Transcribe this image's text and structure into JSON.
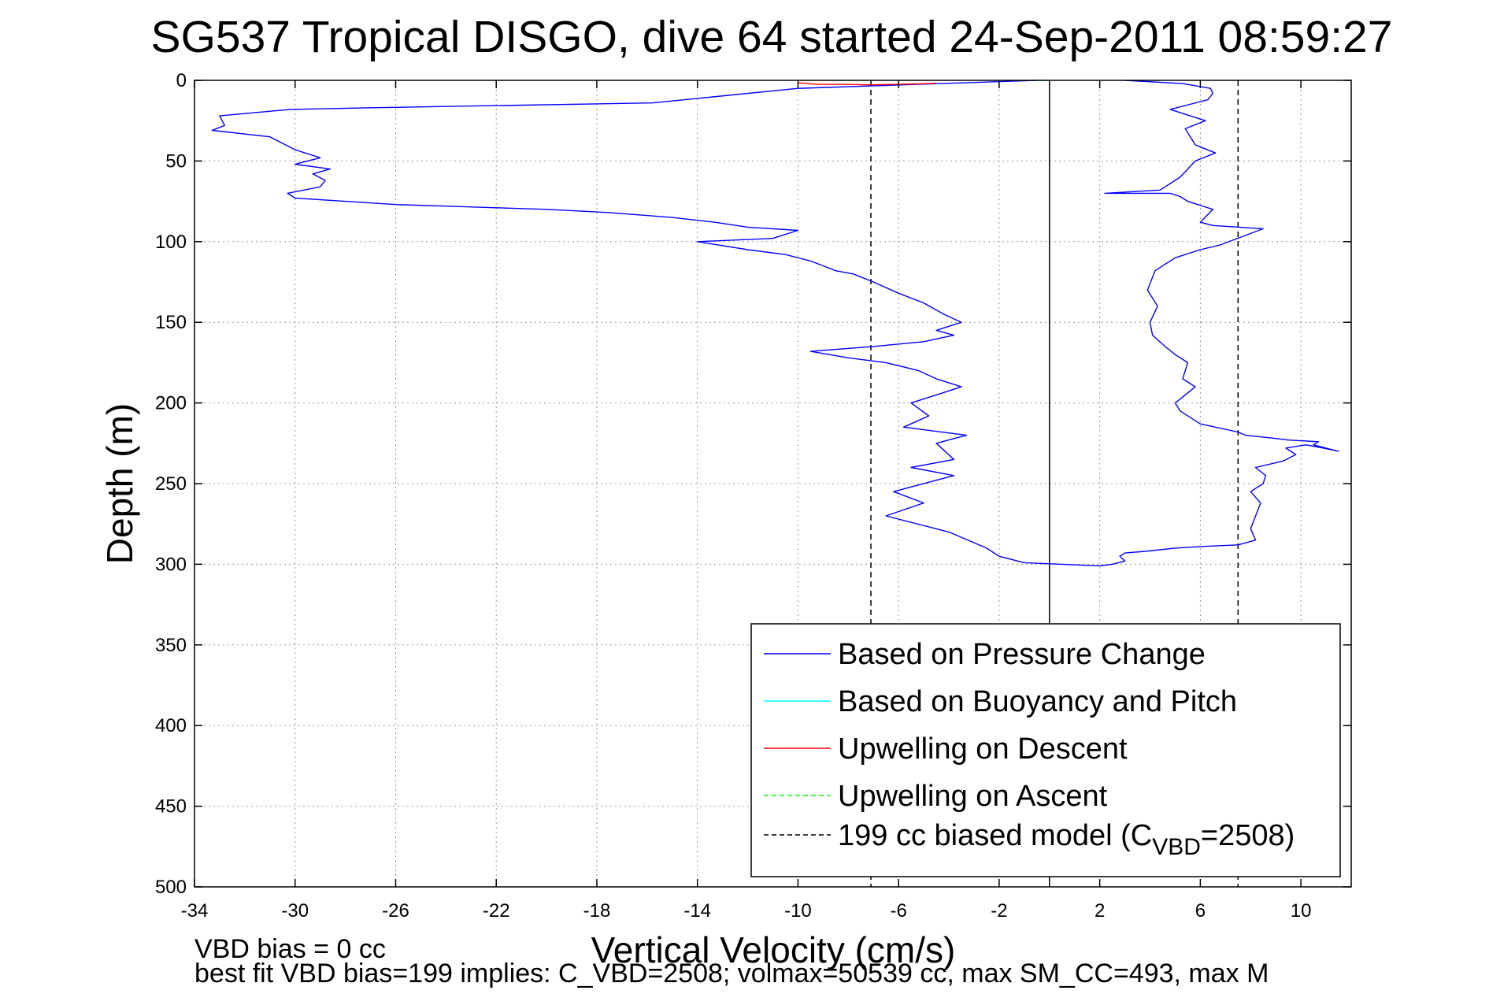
{
  "chart_data": {
    "type": "line",
    "title": "SG537 Tropical DISGO, dive 64 started 24-Sep-2011 08:59:27",
    "xlabel": "Vertical Velocity (cm/s)",
    "ylabel": "Depth (m)",
    "xlim": [
      -34,
      12
    ],
    "ylim": [
      0,
      500
    ],
    "y_reversed": true,
    "x_ticks": [
      -34,
      -30,
      -26,
      -22,
      -18,
      -14,
      -10,
      -6,
      -2,
      2,
      6,
      10
    ],
    "y_ticks": [
      0,
      50,
      100,
      150,
      200,
      250,
      300,
      350,
      400,
      450,
      500
    ],
    "grid": true,
    "legend_position": "bottom-right",
    "legend": [
      {
        "label": "Based on Pressure Change",
        "color": "#0000ff",
        "dash": "solid"
      },
      {
        "label": "Based on Buoyancy and Pitch",
        "color": "#00ffff",
        "dash": "solid"
      },
      {
        "label": "Upwelling on Descent",
        "color": "#ff0000",
        "dash": "solid"
      },
      {
        "label": "Upwelling on Ascent",
        "color": "#00ff00",
        "dash": "dashed"
      },
      {
        "label": "199 cc biased model (C",
        "sub": "VBD",
        "suffix": "=2508)",
        "color": "#000000",
        "dash": "dashed"
      }
    ],
    "series": [
      {
        "name": "Based on Pressure Change",
        "color": "#0000ff",
        "x": [
          -0.5,
          -10,
          -15.8,
          -27,
          -30.2,
          -33,
          -32.8,
          -33.3,
          -31,
          -30,
          -29,
          -30,
          -28.6,
          -29.3,
          -28.8,
          -29,
          -30.3,
          -30,
          -28,
          -26,
          -24,
          -22,
          -20,
          -17.5,
          -15,
          -13.3,
          -12,
          -10,
          -11,
          -14,
          -12,
          -10.5,
          -9.5,
          -9,
          -8.5,
          -7.8,
          -7,
          -6,
          -5,
          -4.2,
          -3.5,
          -4.5,
          -3.8,
          -5,
          -7,
          -9.5,
          -8,
          -6.5,
          -5.2,
          -4.5,
          -3.5,
          -4.5,
          -5.5,
          -4.8,
          -5.8,
          -3.3,
          -4.5,
          -3.8,
          -5.5,
          -3.8,
          -6.2,
          -5,
          -6.5,
          -4,
          -2.5,
          -2,
          -1,
          2,
          2.5,
          3,
          2.8,
          3,
          3.8,
          5,
          6,
          7.5,
          8.2,
          8,
          8.2,
          8.4,
          8,
          8.5,
          8.6,
          8.2,
          9.3,
          9.8,
          9.4,
          10.2,
          10.9,
          11.5,
          10.5,
          10.7,
          9.5,
          9,
          7.8,
          7.5,
          6,
          5.2,
          5,
          5.4,
          5.8,
          5.3,
          5.5,
          5,
          4.6,
          4.1,
          4,
          4.3,
          3.9,
          4.2,
          5,
          6,
          6.8,
          8.5,
          6.5,
          6,
          6.5,
          5.5,
          5.2,
          4.8,
          2.2,
          4.4,
          5.2,
          5.8,
          6.6,
          5.8,
          5.4,
          6.2,
          4.8,
          6.3,
          6.5,
          6.4,
          5.3,
          3
        ],
        "y": [
          0,
          5,
          14,
          17,
          18,
          22,
          28,
          31,
          35,
          43,
          48,
          52,
          55,
          58,
          62,
          66,
          70,
          73,
          75,
          77,
          78,
          79,
          80,
          82,
          85,
          88,
          91,
          93,
          98,
          100,
          105,
          108,
          112,
          115,
          118,
          120,
          125,
          132,
          138,
          145,
          150,
          155,
          158,
          162,
          165,
          168,
          172,
          175,
          180,
          185,
          190,
          195,
          200,
          208,
          215,
          220,
          225,
          235,
          240,
          245,
          255,
          262,
          270,
          280,
          290,
          295,
          299,
          301,
          300,
          298,
          295,
          293,
          292,
          290,
          289,
          288,
          285,
          278,
          270,
          262,
          255,
          250,
          245,
          240,
          236,
          232,
          228,
          226,
          228,
          230,
          226,
          224,
          223,
          222,
          220,
          218,
          213,
          205,
          200,
          195,
          190,
          185,
          175,
          170,
          165,
          158,
          150,
          140,
          130,
          118,
          110,
          105,
          102,
          92,
          90,
          88,
          80,
          75,
          72,
          70,
          70,
          68,
          60,
          50,
          45,
          40,
          30,
          25,
          18,
          12,
          8,
          5,
          2,
          0
        ]
      },
      {
        "name": "Based on Buoyancy and Pitch",
        "color": "#00ffff",
        "x": [
          -0.5,
          0
        ],
        "y": [
          0,
          0
        ]
      },
      {
        "name": "Upwelling on Descent",
        "color": "#ff0000",
        "x": [
          -10,
          -9.2,
          -8.2,
          -7.2,
          -6.2,
          -5.2,
          -4.5
        ],
        "y": [
          1.5,
          2.5,
          2.5,
          2.8,
          2.5,
          2.2,
          1.8
        ]
      },
      {
        "name": "Upwelling on Ascent",
        "color": "#00ff00",
        "x": [],
        "y": []
      }
    ],
    "model_lines": [
      {
        "x": -7.1,
        "ylim": [
          0,
          500
        ],
        "color": "#000000",
        "dash": "dashed"
      },
      {
        "x": 7.5,
        "ylim": [
          0,
          500
        ],
        "color": "#000000",
        "dash": "dashed"
      }
    ],
    "zero_line": {
      "x": 0,
      "color": "#000000"
    }
  },
  "notes": {
    "line1": "VBD bias = 0 cc",
    "line2": "best fit VBD bias=199 implies: C_VBD=2508; volmax=50539 cc, max SM_CC=493, max M"
  }
}
